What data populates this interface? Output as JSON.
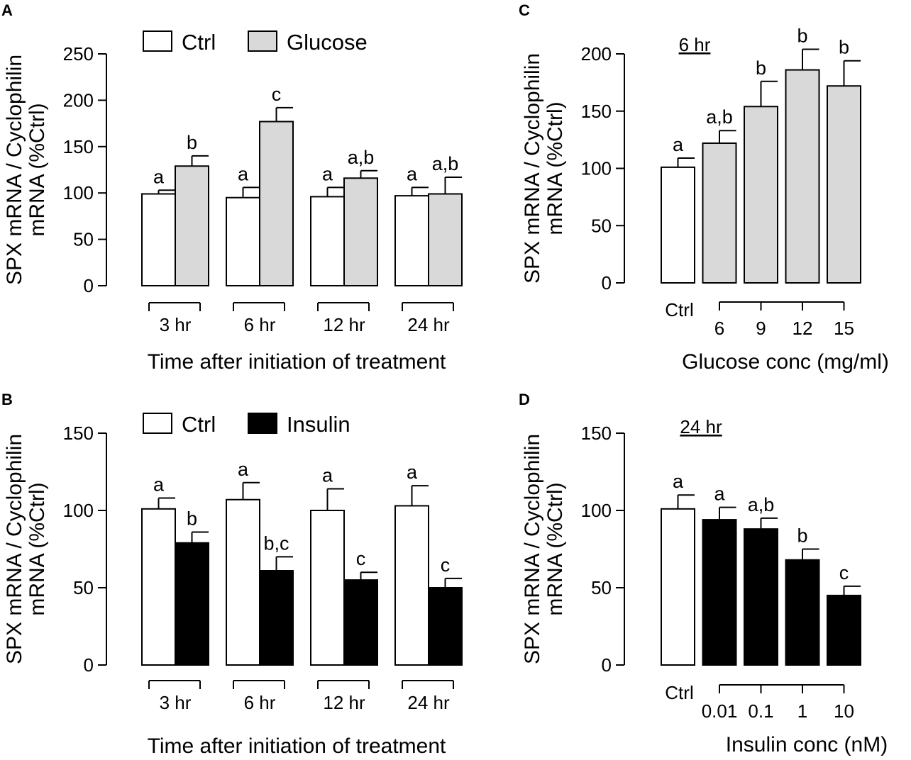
{
  "chart_data": [
    {
      "panel": "A",
      "type": "bar",
      "ylabel_line1": "SPX mRNA / Cyclophilin",
      "ylabel_line2": "mRNA (%Ctrl)",
      "xlabel": "Time after initiation of treatment",
      "ylim": [
        0,
        250
      ],
      "yticks": [
        0,
        50,
        100,
        150,
        200,
        250
      ],
      "categories": [
        "3 hr",
        "6 hr",
        "12 hr",
        "24 hr"
      ],
      "series": [
        {
          "name": "Ctrl",
          "color": "#ffffff",
          "values": [
            99,
            95,
            96,
            97
          ],
          "errors": [
            4,
            11,
            10,
            9
          ],
          "labels": [
            "a",
            "a",
            "a",
            "a"
          ]
        },
        {
          "name": "Glucose",
          "color": "#d9d9d9",
          "values": [
            129,
            177,
            116,
            99
          ],
          "errors": [
            11,
            15,
            8,
            18
          ],
          "labels": [
            "b",
            "c",
            "a,b",
            "a,b"
          ]
        }
      ]
    },
    {
      "panel": "B",
      "type": "bar",
      "ylabel_line1": "SPX mRNA / Cyclophilin",
      "ylabel_line2": "mRNA (%Ctrl)",
      "xlabel": "Time after initiation of treatment",
      "ylim": [
        0,
        150
      ],
      "yticks": [
        0,
        50,
        100,
        150
      ],
      "categories": [
        "3 hr",
        "6 hr",
        "12 hr",
        "24 hr"
      ],
      "series": [
        {
          "name": "Ctrl",
          "color": "#ffffff",
          "values": [
            101,
            107,
            100,
            103
          ],
          "errors": [
            7,
            11,
            14,
            13
          ],
          "labels": [
            "a",
            "a",
            "a",
            "a"
          ]
        },
        {
          "name": "Insulin",
          "color": "#000000",
          "values": [
            79,
            61,
            55,
            50
          ],
          "errors": [
            7,
            9,
            5,
            6
          ],
          "labels": [
            "b",
            "b,c",
            "c",
            "c"
          ]
        }
      ]
    },
    {
      "panel": "C",
      "type": "bar",
      "condition": "6 hr",
      "ylabel_line1": "SPX mRNA / Cyclophilin",
      "ylabel_line2": "mRNA (%Ctrl)",
      "xlabel": "Glucose conc (mg/ml)",
      "ylim": [
        0,
        200
      ],
      "yticks": [
        0,
        50,
        100,
        150,
        200
      ],
      "categories": [
        "Ctrl",
        "6",
        "9",
        "12",
        "15"
      ],
      "values": [
        101,
        122,
        154,
        186,
        172
      ],
      "errors": [
        8,
        11,
        22,
        18,
        22
      ],
      "labels": [
        "a",
        "a,b",
        "b",
        "b",
        "b"
      ],
      "colors": [
        "#ffffff",
        "#d9d9d9",
        "#d9d9d9",
        "#d9d9d9",
        "#d9d9d9"
      ]
    },
    {
      "panel": "D",
      "type": "bar",
      "condition": "24 hr",
      "ylabel_line1": "SPX mRNA / Cyclophilin",
      "ylabel_line2": "mRNA (%Ctrl)",
      "xlabel": "Insulin conc (nM)",
      "ylim": [
        0,
        150
      ],
      "yticks": [
        0,
        50,
        100,
        150
      ],
      "categories": [
        "Ctrl",
        "0.01",
        "0.1",
        "1",
        "10"
      ],
      "values": [
        101,
        94,
        88,
        68,
        45
      ],
      "errors": [
        9,
        8,
        7,
        7,
        6
      ],
      "labels": [
        "a",
        "a",
        "a,b",
        "b",
        "c"
      ],
      "colors": [
        "#ffffff",
        "#000000",
        "#000000",
        "#000000",
        "#000000"
      ]
    }
  ]
}
